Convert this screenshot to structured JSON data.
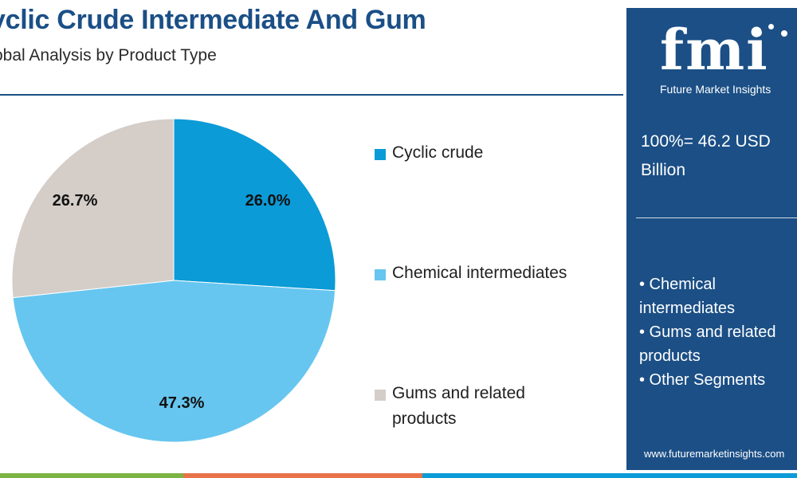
{
  "header": {
    "title": "yclic Crude Intermediate And Gum",
    "subtitle": "obal Analysis by Product Type"
  },
  "chart_data": {
    "type": "pie",
    "slices": [
      {
        "label": "Cyclic crude",
        "value": 26.0,
        "display": "26.0%",
        "color": "#0b9bd7"
      },
      {
        "label": "Chemical intermediates",
        "value": 47.3,
        "display": "47.3%",
        "color": "#66c6ef"
      },
      {
        "label": "Gums and related products",
        "value": 26.7,
        "display": "26.7%",
        "color": "#d5cdc8"
      }
    ],
    "legend_position": "right"
  },
  "legend": {
    "items": [
      {
        "label": "Cyclic crude"
      },
      {
        "label": "Chemical intermediates"
      },
      {
        "label": "Gums and related products"
      }
    ]
  },
  "side_panel": {
    "logo_text": "fmi",
    "logo_tagline": "Future Market Insights",
    "total": "100%= 46.2 USD Billion",
    "segments": [
      "• Chemical intermediates",
      "• Gums and related products",
      "• Other Segments"
    ],
    "website": "www.futuremarketinsights.com",
    "background_color": "#1b4f86"
  },
  "footer": {
    "bar_colors": [
      "#7cb342",
      "#e8734a",
      "#0b9bd7"
    ]
  }
}
